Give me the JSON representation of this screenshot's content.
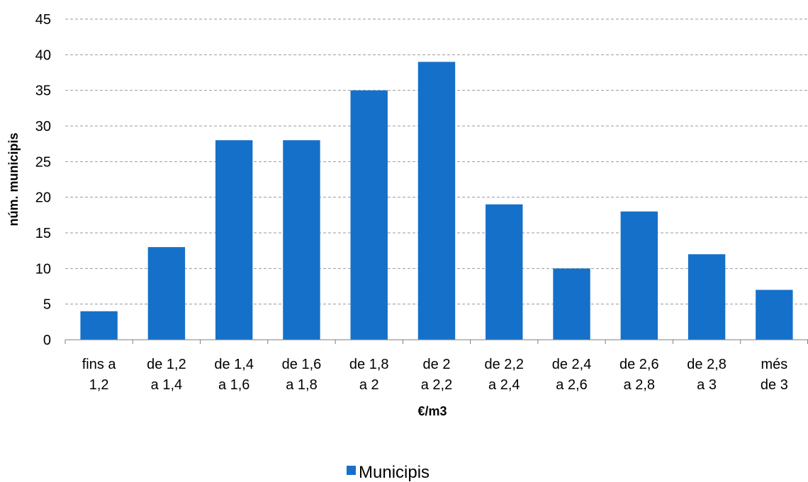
{
  "chart_data": {
    "type": "bar",
    "categories": [
      [
        "fins a",
        "1,2"
      ],
      [
        "de 1,2",
        "a 1,4"
      ],
      [
        "de 1,4",
        "a 1,6"
      ],
      [
        "de 1,6",
        "a 1,8"
      ],
      [
        "de 1,8",
        "a 2"
      ],
      [
        "de 2",
        "a 2,2"
      ],
      [
        "de 2,2",
        "a 2,4"
      ],
      [
        "de 2,4",
        "a 2,6"
      ],
      [
        "de 2,6",
        "a 2,8"
      ],
      [
        "de 2,8",
        "a 3"
      ],
      [
        "més",
        "de 3"
      ]
    ],
    "series": [
      {
        "name": "Municipis",
        "values": [
          4,
          13,
          28,
          28,
          35,
          39,
          19,
          10,
          18,
          12,
          7
        ]
      }
    ],
    "xlabel": "€/m3",
    "ylabel": "núm. municipis",
    "ylim": [
      0,
      45
    ],
    "yticks": [
      0,
      5,
      10,
      15,
      20,
      25,
      30,
      35,
      40,
      45
    ],
    "grid": true,
    "legend_position": "bottom",
    "colors": {
      "bar": "#1570C9",
      "grid": "#9a9a9a",
      "axis": "#7f7f7f"
    }
  }
}
